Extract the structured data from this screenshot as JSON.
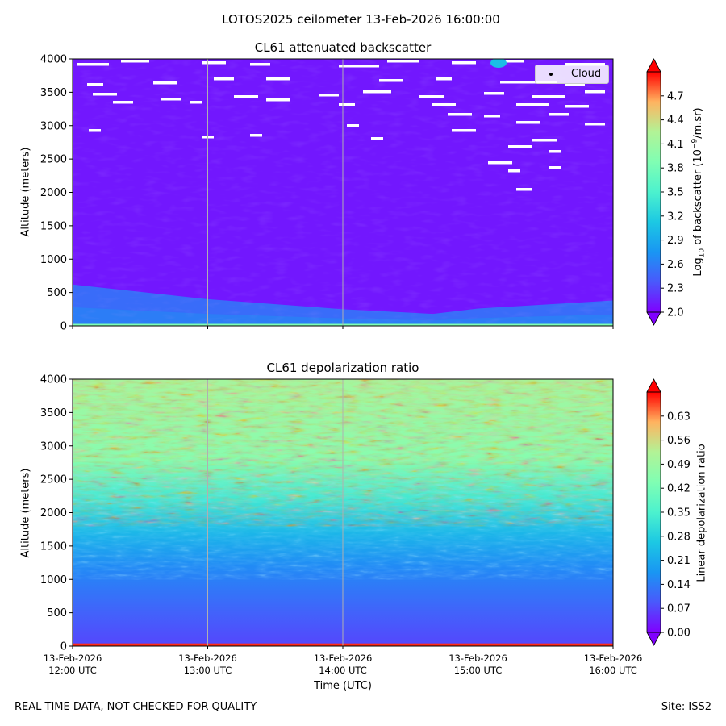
{
  "suptitle": "LOTOS2025 ceilometer 13-Feb-2026 16:00:00",
  "footer": {
    "left": "REAL TIME DATA, NOT CHECKED FOR QUALITY",
    "right": "Site: ISS2"
  },
  "chart_data": [
    {
      "type": "heatmap",
      "title": "CL61 attenuated backscatter",
      "ylabel": "Altitude (meters)",
      "xlabel": "",
      "ylim": [
        0,
        4000
      ],
      "y_ticks": [
        0,
        500,
        1000,
        1500,
        2000,
        2500,
        3000,
        3500,
        4000
      ],
      "x_ticks": [
        {
          "line1": "13-Feb-2026",
          "line2": "12:00 UTC"
        },
        {
          "line1": "13-Feb-2026",
          "line2": "13:00 UTC"
        },
        {
          "line1": "13-Feb-2026",
          "line2": "14:00 UTC"
        },
        {
          "line1": "13-Feb-2026",
          "line2": "15:00 UTC"
        },
        {
          "line1": "13-Feb-2026",
          "line2": "16:00 UTC"
        }
      ],
      "x_tick_labels_shown": false,
      "colorbar": {
        "label": "Log10 of backscatter (10^-9/m.sr)",
        "range": [
          2.0,
          5.0
        ],
        "ticks": [
          "2.0",
          "2.3",
          "2.6",
          "2.9",
          "3.2",
          "3.5",
          "3.8",
          "4.1",
          "4.4",
          "4.7"
        ],
        "extend": "both",
        "colormap": "rainbow"
      },
      "legend": {
        "entries": [
          "Cloud"
        ],
        "placement": "top-right"
      },
      "grid": "vertical",
      "field_description": {
        "surface_band_altitude_m": [
          0,
          30
        ],
        "boundary_layer_top_m": {
          "12:00": 620,
          "13:00": 400,
          "14:00": 250,
          "14:40": 180,
          "15:00": 260,
          "16:00": 380
        },
        "boundary_layer_value": 2.55,
        "aloft_value": 2.1
      }
    },
    {
      "type": "heatmap",
      "title": "CL61 depolarization ratio",
      "ylabel": "Altitude (meters)",
      "xlabel": "Time (UTC)",
      "ylim": [
        0,
        4000
      ],
      "y_ticks": [
        0,
        500,
        1000,
        1500,
        2000,
        2500,
        3000,
        3500,
        4000
      ],
      "x_ticks": [
        {
          "line1": "13-Feb-2026",
          "line2": "12:00 UTC"
        },
        {
          "line1": "13-Feb-2026",
          "line2": "13:00 UTC"
        },
        {
          "line1": "13-Feb-2026",
          "line2": "14:00 UTC"
        },
        {
          "line1": "13-Feb-2026",
          "line2": "15:00 UTC"
        },
        {
          "line1": "13-Feb-2026",
          "line2": "16:00 UTC"
        }
      ],
      "x_tick_labels_shown": true,
      "colorbar": {
        "label": "Linear depolarization ratio",
        "range": [
          0.0,
          0.7
        ],
        "ticks": [
          "0.00",
          "0.07",
          "0.14",
          "0.21",
          "0.28",
          "0.35",
          "0.42",
          "0.49",
          "0.56",
          "0.63"
        ],
        "extend": "both",
        "colormap": "rainbow"
      },
      "grid": "vertical",
      "field_description": {
        "surface_band_altitude_m": [
          0,
          40
        ],
        "surface_band_value": 0.68,
        "low_layer_value": 0.07,
        "mid_layer_value": 0.28,
        "upper_layer_value": 0.5
      }
    }
  ]
}
